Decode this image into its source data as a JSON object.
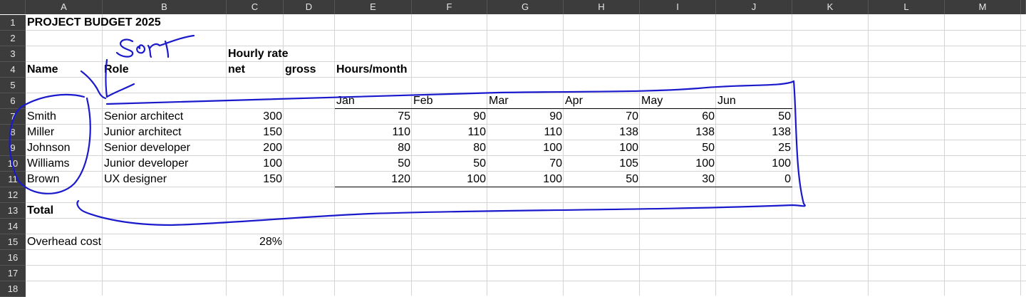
{
  "columns": [
    "A",
    "B",
    "C",
    "D",
    "E",
    "F",
    "G",
    "H",
    "I",
    "J",
    "K",
    "L",
    "M"
  ],
  "rows": [
    "1",
    "2",
    "3",
    "4",
    "5",
    "6",
    "7",
    "8",
    "9",
    "10",
    "11",
    "12",
    "13",
    "14",
    "15",
    "16",
    "17",
    "18"
  ],
  "title": "PROJECT BUDGET 2025",
  "header": {
    "hourly_rate": "Hourly rate",
    "name": "Name",
    "role": "Role",
    "net": "net",
    "gross": "gross",
    "hours_month": "Hours/month"
  },
  "months": [
    "Jan",
    "Feb",
    "Mar",
    "Apr",
    "May",
    "Jun"
  ],
  "people": [
    {
      "name": "Smith",
      "role": "Senior architect",
      "rate": "300",
      "hours": [
        "75",
        "90",
        "90",
        "70",
        "60",
        "50"
      ]
    },
    {
      "name": "Miller",
      "role": "Junior architect",
      "rate": "150",
      "hours": [
        "110",
        "110",
        "110",
        "138",
        "138",
        "138"
      ]
    },
    {
      "name": "Johnson",
      "role": "Senior developer",
      "rate": "200",
      "hours": [
        "80",
        "80",
        "100",
        "100",
        "50",
        "25"
      ]
    },
    {
      "name": "Williams",
      "role": "Junior developer",
      "rate": "100",
      "hours": [
        "50",
        "50",
        "70",
        "105",
        "100",
        "100"
      ]
    },
    {
      "name": "Brown",
      "role": "UX designer",
      "rate": "150",
      "hours": [
        "120",
        "100",
        "100",
        "50",
        "30",
        "0"
      ]
    }
  ],
  "total_label": "Total",
  "overhead_label": "Overhead cost",
  "overhead_value": "28%",
  "annotation_color": "#1a1acc"
}
